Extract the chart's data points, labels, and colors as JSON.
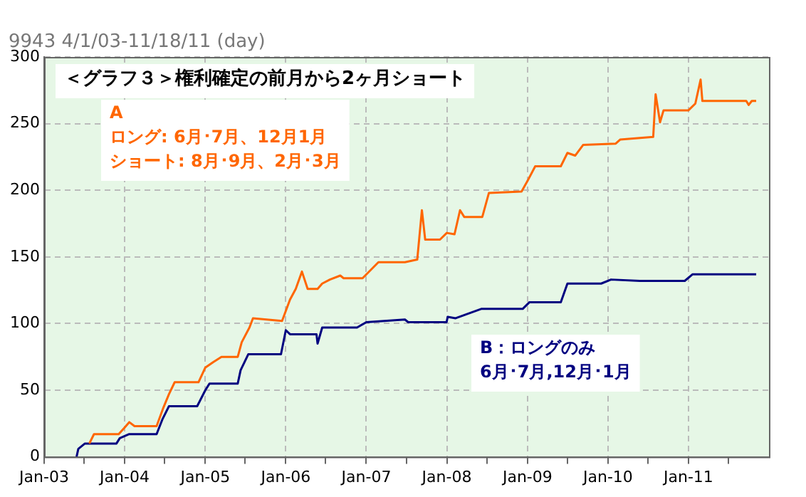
{
  "chart_data": {
    "type": "line",
    "title": "9943 4/1/03-11/18/11 (day)",
    "subtitle": "＜グラフ３＞権利確定の前月から2ヶ月ショート",
    "annotations": [
      "ロング: 6月･7月、12月1月",
      "ショート: 8月･9月、2月･3月",
      "6月･7月,12月･1月"
    ],
    "xlim": [
      "2003-01",
      "2012-01"
    ],
    "xticks": [
      {
        "value": "2003-01",
        "label": "Jan-03"
      },
      {
        "value": "2003-07",
        "label": null
      },
      {
        "value": "2004-01",
        "label": "Jan-04"
      },
      {
        "value": "2004-07",
        "label": null
      },
      {
        "value": "2005-01",
        "label": "Jan-05"
      },
      {
        "value": "2005-07",
        "label": null
      },
      {
        "value": "2006-01",
        "label": "Jan-06"
      },
      {
        "value": "2006-07",
        "label": null
      },
      {
        "value": "2007-01",
        "label": "Jan-07"
      },
      {
        "value": "2007-07",
        "label": null
      },
      {
        "value": "2008-01",
        "label": "Jan-08"
      },
      {
        "value": "2008-07",
        "label": null
      },
      {
        "value": "2009-01",
        "label": "Jan-09"
      },
      {
        "value": "2009-07",
        "label": null
      },
      {
        "value": "2010-01",
        "label": "Jan-10"
      },
      {
        "value": "2010-07",
        "label": null
      },
      {
        "value": "2011-01",
        "label": "Jan-11"
      },
      {
        "value": "2011-07",
        "label": null
      }
    ],
    "ylim": [
      0,
      300
    ],
    "yticks": [
      0,
      50,
      100,
      150,
      200,
      250,
      300
    ],
    "grid": true,
    "legend": false,
    "marker": "none",
    "line_style": "solid",
    "series": [
      {
        "name": "A",
        "color": "#ff6600",
        "x": [
          "2003-07-25",
          "2003-08-15",
          "2003-12-05",
          "2004-01-01",
          "2004-01-22",
          "2004-02-15",
          "2004-05-25",
          "2004-06-25",
          "2004-07-20",
          "2004-08-15",
          "2004-12-01",
          "2005-01-01",
          "2005-02-05",
          "2005-03-15",
          "2005-05-28",
          "2005-06-15",
          "2005-07-20",
          "2005-08-05",
          "2005-12-15",
          "2006-01-20",
          "2006-02-15",
          "2006-03-15",
          "2006-04-10",
          "2006-05-25",
          "2006-06-15",
          "2006-07-20",
          "2006-09-05",
          "2006-09-20",
          "2006-12-15",
          "2007-01-20",
          "2007-02-25",
          "2007-06-25",
          "2007-08-20",
          "2007-09-10",
          "2007-09-25",
          "2007-12-01",
          "2008-01-01",
          "2008-02-05",
          "2008-03-01",
          "2008-03-20",
          "2008-06-10",
          "2008-07-10",
          "2008-12-05",
          "2009-01-01",
          "2009-02-05",
          "2009-06-01",
          "2009-07-01",
          "2009-08-05",
          "2009-09-10",
          "2010-02-05",
          "2010-02-25",
          "2010-07-25",
          "2010-08-05",
          "2010-08-25",
          "2010-09-10",
          "2011-01-01",
          "2011-02-01",
          "2011-02-25",
          "2011-03-05",
          "2011-09-20",
          "2011-10-01",
          "2011-10-15",
          "2011-11-04"
        ],
        "values": [
          10,
          17,
          17,
          22,
          26,
          23,
          23,
          37,
          47,
          56,
          56,
          67,
          71,
          75,
          75,
          86,
          97,
          104,
          102,
          118,
          126,
          139,
          126,
          126,
          130,
          133,
          136,
          134,
          134,
          140,
          146,
          146,
          148,
          185,
          163,
          163,
          168,
          167,
          185,
          180,
          180,
          198,
          199,
          207,
          218,
          218,
          228,
          226,
          234,
          235,
          238,
          240,
          272,
          251,
          260,
          260,
          265,
          283,
          267,
          267,
          264,
          267,
          267
        ]
      },
      {
        "name": "B：ロングのみ",
        "color": "#000080",
        "x": [
          "2003-05-28",
          "2003-06-05",
          "2003-07-05",
          "2003-11-25",
          "2003-12-10",
          "2004-01-20",
          "2004-05-25",
          "2004-06-20",
          "2004-07-20",
          "2004-11-25",
          "2005-01-01",
          "2005-01-20",
          "2005-05-28",
          "2005-06-10",
          "2005-07-15",
          "2005-12-10",
          "2006-01-01",
          "2006-01-20",
          "2006-05-20",
          "2006-05-25",
          "2006-06-15",
          "2006-11-20",
          "2007-01-01",
          "2007-06-25",
          "2007-07-10",
          "2007-12-31",
          "2008-01-05",
          "2008-02-10",
          "2008-06-05",
          "2008-12-10",
          "2009-01-10",
          "2009-06-01",
          "2009-07-01",
          "2009-12-01",
          "2010-01-15",
          "2010-05-25",
          "2010-12-15",
          "2011-01-20",
          "2011-11-04"
        ],
        "values": [
          0,
          6,
          10,
          10,
          14,
          17,
          17,
          28,
          38,
          38,
          50,
          55,
          55,
          65,
          77,
          77,
          95,
          92,
          92,
          85,
          97,
          97,
          101,
          103,
          101,
          101,
          105,
          104,
          111,
          111,
          116,
          116,
          130,
          130,
          133,
          132,
          132,
          137,
          137
        ]
      }
    ]
  }
}
